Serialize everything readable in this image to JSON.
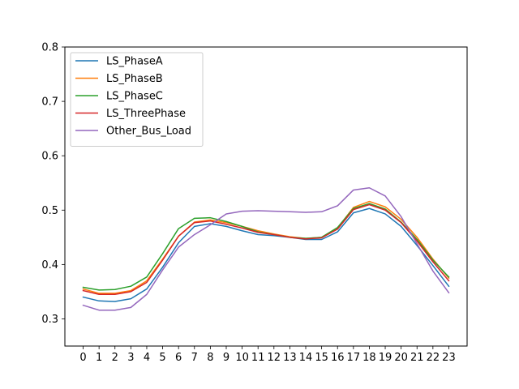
{
  "chart_data": {
    "type": "line",
    "x": [
      0,
      1,
      2,
      3,
      4,
      5,
      6,
      7,
      8,
      9,
      10,
      11,
      12,
      13,
      14,
      15,
      16,
      17,
      18,
      19,
      20,
      21,
      22,
      23
    ],
    "xticks": [
      "0",
      "1",
      "2",
      "3",
      "4",
      "5",
      "6",
      "7",
      "8",
      "9",
      "10",
      "11",
      "12",
      "13",
      "14",
      "15",
      "16",
      "17",
      "18",
      "19",
      "20",
      "21",
      "22",
      "23"
    ],
    "ylim": [
      0.25,
      0.8
    ],
    "yticks": [
      "0.3",
      "0.4",
      "0.5",
      "0.6",
      "0.7",
      "0.8"
    ],
    "xlabel": "",
    "ylabel": "",
    "title": "",
    "legend_position": "top-left",
    "grid": false,
    "series": [
      {
        "name": "LS_PhaseA",
        "color": "#1f77b4",
        "values": [
          0.34,
          0.333,
          0.332,
          0.337,
          0.355,
          0.395,
          0.44,
          0.47,
          0.475,
          0.47,
          0.462,
          0.455,
          0.453,
          0.45,
          0.446,
          0.446,
          0.46,
          0.495,
          0.503,
          0.493,
          0.47,
          0.435,
          0.398,
          0.36
        ]
      },
      {
        "name": "LS_PhaseB",
        "color": "#ff7f0e",
        "values": [
          0.355,
          0.347,
          0.347,
          0.352,
          0.37,
          0.41,
          0.452,
          0.478,
          0.482,
          0.477,
          0.47,
          0.462,
          0.456,
          0.451,
          0.448,
          0.45,
          0.467,
          0.505,
          0.516,
          0.506,
          0.483,
          0.45,
          0.41,
          0.375
        ]
      },
      {
        "name": "LS_PhaseC",
        "color": "#2ca02c",
        "values": [
          0.358,
          0.353,
          0.354,
          0.36,
          0.377,
          0.42,
          0.466,
          0.485,
          0.486,
          0.479,
          0.47,
          0.46,
          0.455,
          0.45,
          0.448,
          0.45,
          0.468,
          0.503,
          0.512,
          0.502,
          0.478,
          0.446,
          0.408,
          0.377
        ]
      },
      {
        "name": "LS_ThreePhase",
        "color": "#d62728",
        "values": [
          0.352,
          0.345,
          0.345,
          0.35,
          0.367,
          0.408,
          0.452,
          0.477,
          0.48,
          0.474,
          0.467,
          0.459,
          0.455,
          0.45,
          0.447,
          0.449,
          0.465,
          0.501,
          0.51,
          0.5,
          0.477,
          0.443,
          0.405,
          0.37
        ]
      },
      {
        "name": "Other_Bus_Load",
        "color": "#9467bd",
        "values": [
          0.325,
          0.316,
          0.316,
          0.321,
          0.345,
          0.39,
          0.432,
          0.455,
          0.473,
          0.493,
          0.498,
          0.499,
          0.498,
          0.497,
          0.496,
          0.497,
          0.508,
          0.537,
          0.541,
          0.526,
          0.488,
          0.438,
          0.388,
          0.348
        ]
      }
    ]
  }
}
